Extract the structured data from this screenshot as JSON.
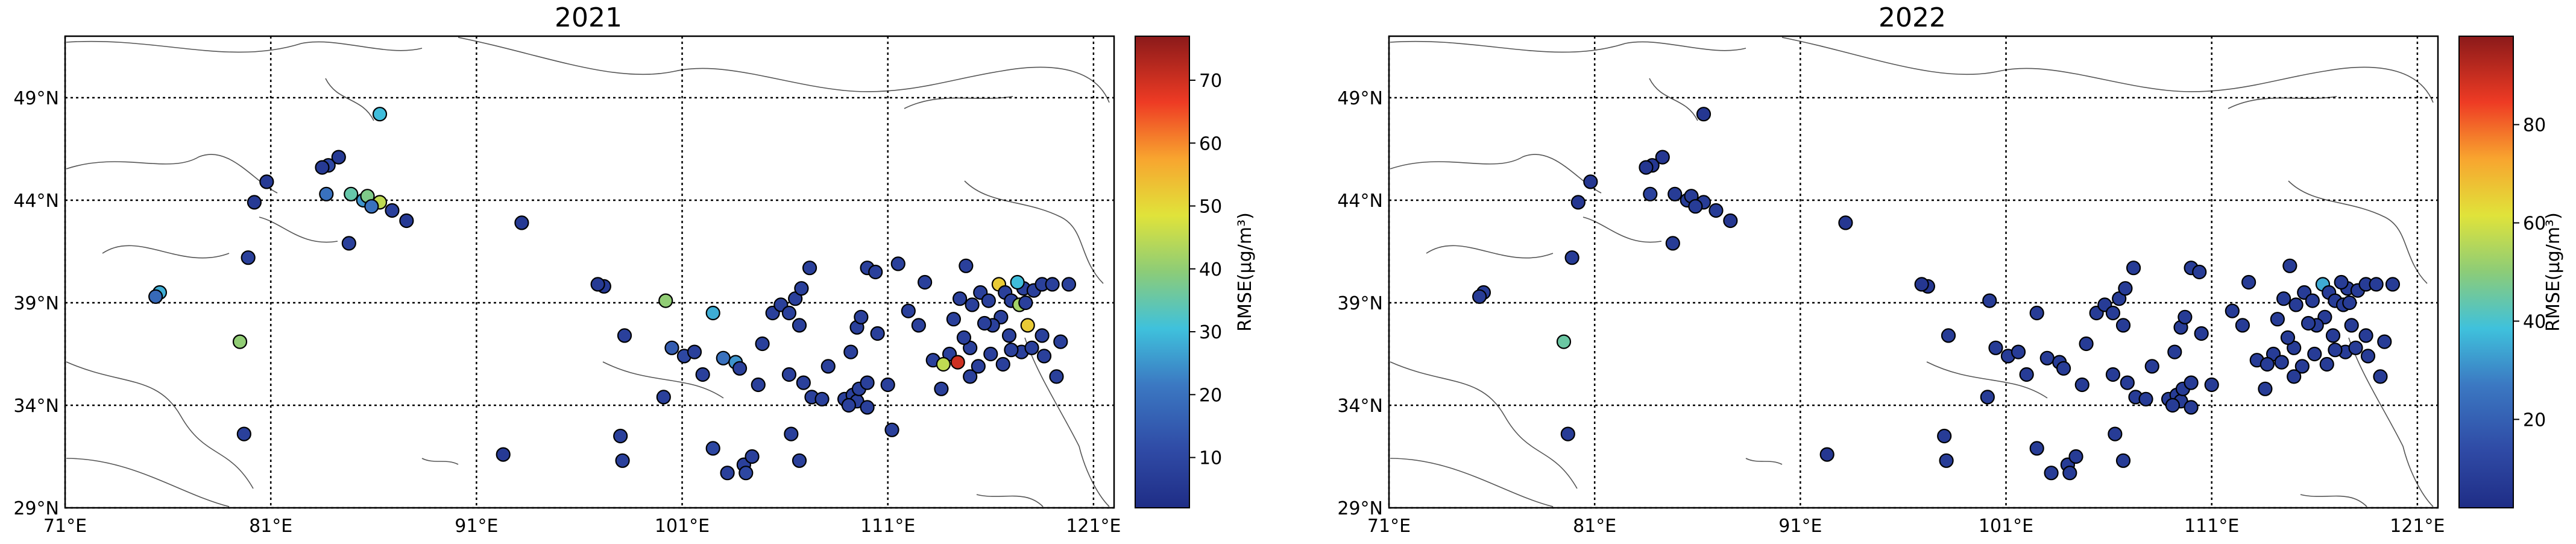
{
  "panels": [
    {
      "title": "2021",
      "colorbar": {
        "label": "RMSE(μg/m³)",
        "min": 2,
        "max": 77,
        "ticks": [
          "10",
          "20",
          "30",
          "40",
          "50",
          "60",
          "70"
        ],
        "tick_values": [
          10,
          20,
          30,
          40,
          50,
          60,
          70
        ]
      },
      "points": [
        [
          75.6,
          39.5,
          28
        ],
        [
          75.4,
          39.3,
          18
        ],
        [
          79.5,
          37.1,
          40
        ],
        [
          79.7,
          32.6,
          8
        ],
        [
          79.9,
          41.2,
          8
        ],
        [
          80.2,
          43.9,
          6
        ],
        [
          80.8,
          44.9,
          6
        ],
        [
          83.8,
          45.7,
          10
        ],
        [
          84.3,
          46.1,
          6
        ],
        [
          83.5,
          45.6,
          6
        ],
        [
          83.7,
          44.3,
          20
        ],
        [
          84.9,
          44.3,
          35
        ],
        [
          85.5,
          44.0,
          25
        ],
        [
          85.7,
          44.2,
          38
        ],
        [
          86.3,
          43.9,
          45
        ],
        [
          86.9,
          43.5,
          8
        ],
        [
          87.6,
          43.0,
          6
        ],
        [
          84.8,
          41.9,
          8
        ],
        [
          86.3,
          48.2,
          30
        ],
        [
          85.9,
          43.7,
          20
        ],
        [
          93.2,
          42.9,
          6
        ],
        [
          92.3,
          31.6,
          6
        ],
        [
          97.2,
          39.8,
          6
        ],
        [
          96.9,
          39.9,
          6
        ],
        [
          98.2,
          37.4,
          8
        ],
        [
          98.0,
          32.5,
          8
        ],
        [
          98.1,
          31.3,
          8
        ],
        [
          100.2,
          39.1,
          40
        ],
        [
          100.5,
          36.8,
          15
        ],
        [
          100.1,
          34.4,
          8
        ],
        [
          101.1,
          36.4,
          10
        ],
        [
          101.6,
          36.6,
          8
        ],
        [
          102.5,
          38.5,
          28
        ],
        [
          102.0,
          35.5,
          8
        ],
        [
          103.0,
          36.3,
          20
        ],
        [
          103.6,
          36.1,
          25
        ],
        [
          103.8,
          35.8,
          8
        ],
        [
          102.5,
          31.9,
          10
        ],
        [
          103.2,
          30.7,
          8
        ],
        [
          104.0,
          31.1,
          8
        ],
        [
          104.4,
          31.5,
          8
        ],
        [
          104.1,
          30.7,
          10
        ],
        [
          104.7,
          35.0,
          8
        ],
        [
          104.9,
          37.0,
          8
        ],
        [
          105.4,
          38.5,
          8
        ],
        [
          105.8,
          38.9,
          8
        ],
        [
          106.2,
          38.5,
          8
        ],
        [
          106.5,
          39.2,
          8
        ],
        [
          106.8,
          39.7,
          8
        ],
        [
          107.2,
          40.7,
          8
        ],
        [
          106.7,
          37.9,
          8
        ],
        [
          106.2,
          35.5,
          8
        ],
        [
          106.9,
          35.1,
          8
        ],
        [
          107.3,
          34.4,
          8
        ],
        [
          107.8,
          34.3,
          8
        ],
        [
          106.3,
          32.6,
          8
        ],
        [
          106.7,
          31.3,
          8
        ],
        [
          108.1,
          35.9,
          8
        ],
        [
          108.9,
          34.3,
          8
        ],
        [
          109.3,
          34.5,
          8
        ],
        [
          109.5,
          34.2,
          8
        ],
        [
          109.1,
          34.0,
          8
        ],
        [
          109.6,
          34.8,
          8
        ],
        [
          110.0,
          35.1,
          8
        ],
        [
          109.2,
          36.6,
          8
        ],
        [
          109.5,
          37.8,
          8
        ],
        [
          109.7,
          38.3,
          8
        ],
        [
          110.0,
          40.7,
          8
        ],
        [
          110.4,
          40.5,
          8
        ],
        [
          110.5,
          37.5,
          8
        ],
        [
          110.0,
          33.9,
          8
        ],
        [
          111.0,
          35.0,
          8
        ],
        [
          111.2,
          32.8,
          8
        ],
        [
          111.5,
          40.9,
          8
        ],
        [
          112.0,
          38.6,
          8
        ],
        [
          112.5,
          37.9,
          8
        ],
        [
          112.8,
          40.0,
          8
        ],
        [
          113.2,
          36.2,
          8
        ],
        [
          113.6,
          34.8,
          8
        ],
        [
          114.0,
          36.5,
          8
        ],
        [
          114.2,
          38.2,
          8
        ],
        [
          114.5,
          39.2,
          8
        ],
        [
          114.8,
          40.8,
          8
        ],
        [
          115.1,
          38.9,
          8
        ],
        [
          115.5,
          39.5,
          8
        ],
        [
          115.9,
          39.1,
          8
        ],
        [
          116.4,
          39.9,
          52
        ],
        [
          116.7,
          39.5,
          8
        ],
        [
          117.0,
          39.1,
          8
        ],
        [
          117.4,
          38.9,
          42
        ],
        [
          117.6,
          39.7,
          8
        ],
        [
          118.1,
          39.6,
          8
        ],
        [
          118.5,
          39.9,
          8
        ],
        [
          119.0,
          39.9,
          8
        ],
        [
          116.5,
          38.3,
          8
        ],
        [
          116.9,
          37.4,
          8
        ],
        [
          117.5,
          36.6,
          8
        ],
        [
          118.0,
          36.8,
          8
        ],
        [
          118.5,
          37.4,
          8
        ],
        [
          117.0,
          36.7,
          8
        ],
        [
          116.0,
          36.5,
          8
        ],
        [
          115.4,
          35.9,
          8
        ],
        [
          114.4,
          36.1,
          70
        ],
        [
          113.7,
          36.0,
          45
        ],
        [
          115.0,
          36.8,
          8
        ],
        [
          119.4,
          37.1,
          8
        ],
        [
          117.8,
          37.9,
          52
        ],
        [
          116.6,
          36.0,
          8
        ],
        [
          118.6,
          36.4,
          8
        ],
        [
          119.8,
          39.9,
          8
        ],
        [
          117.3,
          40.0,
          30
        ],
        [
          117.7,
          39.0,
          8
        ],
        [
          116.1,
          37.9,
          8
        ],
        [
          115.7,
          38.0,
          8
        ],
        [
          114.7,
          37.3,
          8
        ],
        [
          115.0,
          35.4,
          8
        ],
        [
          119.2,
          35.4,
          8
        ]
      ]
    },
    {
      "title": "2022",
      "colorbar": {
        "label": "RMSE(μg/m³)",
        "min": 2,
        "max": 98,
        "ticks": [
          "20",
          "40",
          "60",
          "80"
        ],
        "tick_values": [
          20,
          40,
          60,
          80
        ]
      },
      "points": [
        [
          75.6,
          39.5,
          8
        ],
        [
          75.4,
          39.3,
          8
        ],
        [
          79.5,
          37.1,
          45
        ],
        [
          79.7,
          32.6,
          8
        ],
        [
          79.9,
          41.2,
          8
        ],
        [
          80.2,
          43.9,
          6
        ],
        [
          80.8,
          44.9,
          6
        ],
        [
          83.8,
          45.7,
          6
        ],
        [
          84.3,
          46.1,
          6
        ],
        [
          83.5,
          45.6,
          6
        ],
        [
          83.7,
          44.3,
          10
        ],
        [
          84.9,
          44.3,
          8
        ],
        [
          85.5,
          44.0,
          8
        ],
        [
          85.7,
          44.2,
          8
        ],
        [
          86.3,
          43.9,
          8
        ],
        [
          86.9,
          43.5,
          8
        ],
        [
          87.6,
          43.0,
          6
        ],
        [
          84.8,
          41.9,
          8
        ],
        [
          86.3,
          48.2,
          6
        ],
        [
          85.9,
          43.7,
          8
        ],
        [
          93.2,
          42.9,
          6
        ],
        [
          92.3,
          31.6,
          6
        ],
        [
          97.2,
          39.8,
          6
        ],
        [
          96.9,
          39.9,
          6
        ],
        [
          98.2,
          37.4,
          8
        ],
        [
          98.0,
          32.5,
          8
        ],
        [
          98.1,
          31.3,
          8
        ],
        [
          100.2,
          39.1,
          8
        ],
        [
          100.5,
          36.8,
          8
        ],
        [
          100.1,
          34.4,
          8
        ],
        [
          101.1,
          36.4,
          8
        ],
        [
          101.6,
          36.6,
          8
        ],
        [
          102.5,
          38.5,
          8
        ],
        [
          102.0,
          35.5,
          8
        ],
        [
          103.0,
          36.3,
          8
        ],
        [
          103.6,
          36.1,
          8
        ],
        [
          103.8,
          35.8,
          8
        ],
        [
          102.5,
          31.9,
          8
        ],
        [
          103.2,
          30.7,
          8
        ],
        [
          104.0,
          31.1,
          8
        ],
        [
          104.4,
          31.5,
          8
        ],
        [
          104.1,
          30.7,
          8
        ],
        [
          104.7,
          35.0,
          8
        ],
        [
          104.9,
          37.0,
          8
        ],
        [
          105.4,
          38.5,
          8
        ],
        [
          105.8,
          38.9,
          8
        ],
        [
          106.2,
          38.5,
          8
        ],
        [
          106.5,
          39.2,
          8
        ],
        [
          106.8,
          39.7,
          8
        ],
        [
          107.2,
          40.7,
          8
        ],
        [
          106.7,
          37.9,
          8
        ],
        [
          106.2,
          35.5,
          8
        ],
        [
          106.9,
          35.1,
          8
        ],
        [
          107.3,
          34.4,
          8
        ],
        [
          107.8,
          34.3,
          8
        ],
        [
          106.3,
          32.6,
          8
        ],
        [
          106.7,
          31.3,
          8
        ],
        [
          108.1,
          35.9,
          8
        ],
        [
          108.9,
          34.3,
          8
        ],
        [
          109.3,
          34.5,
          8
        ],
        [
          109.5,
          34.2,
          8
        ],
        [
          109.1,
          34.0,
          8
        ],
        [
          109.6,
          34.8,
          8
        ],
        [
          110.0,
          35.1,
          8
        ],
        [
          109.2,
          36.6,
          8
        ],
        [
          109.5,
          37.8,
          8
        ],
        [
          109.7,
          38.3,
          8
        ],
        [
          110.0,
          40.7,
          8
        ],
        [
          110.4,
          40.5,
          8
        ],
        [
          110.5,
          37.5,
          8
        ],
        [
          110.0,
          33.9,
          8
        ],
        [
          111.0,
          35.0,
          8
        ],
        [
          112.0,
          38.6,
          8
        ],
        [
          112.5,
          37.9,
          8
        ],
        [
          112.8,
          40.0,
          8
        ],
        [
          113.2,
          36.2,
          8
        ],
        [
          113.6,
          34.8,
          8
        ],
        [
          114.0,
          36.5,
          8
        ],
        [
          114.2,
          38.2,
          8
        ],
        [
          114.5,
          39.2,
          8
        ],
        [
          114.8,
          40.8,
          8
        ],
        [
          115.1,
          38.9,
          8
        ],
        [
          115.5,
          39.5,
          8
        ],
        [
          115.9,
          39.1,
          8
        ],
        [
          116.4,
          39.9,
          35
        ],
        [
          116.7,
          39.5,
          8
        ],
        [
          117.0,
          39.1,
          8
        ],
        [
          117.4,
          38.9,
          8
        ],
        [
          117.6,
          39.7,
          8
        ],
        [
          118.1,
          39.6,
          8
        ],
        [
          118.5,
          39.9,
          8
        ],
        [
          119.0,
          39.9,
          8
        ],
        [
          116.5,
          38.3,
          8
        ],
        [
          116.9,
          37.4,
          8
        ],
        [
          117.5,
          36.6,
          8
        ],
        [
          118.0,
          36.8,
          8
        ],
        [
          118.5,
          37.4,
          8
        ],
        [
          117.0,
          36.7,
          8
        ],
        [
          116.0,
          36.5,
          8
        ],
        [
          115.4,
          35.9,
          8
        ],
        [
          114.4,
          36.1,
          8
        ],
        [
          113.7,
          36.0,
          8
        ],
        [
          115.0,
          36.8,
          8
        ],
        [
          119.4,
          37.1,
          8
        ],
        [
          117.8,
          37.9,
          8
        ],
        [
          116.6,
          36.0,
          8
        ],
        [
          118.6,
          36.4,
          8
        ],
        [
          119.8,
          39.9,
          8
        ],
        [
          117.3,
          40.0,
          8
        ],
        [
          117.7,
          39.0,
          8
        ],
        [
          116.1,
          37.9,
          8
        ],
        [
          115.7,
          38.0,
          8
        ],
        [
          114.7,
          37.3,
          8
        ],
        [
          115.0,
          35.4,
          8
        ],
        [
          119.2,
          35.4,
          8
        ]
      ]
    }
  ],
  "axes": {
    "xticks": [
      "71°E",
      "81°E",
      "91°E",
      "101°E",
      "111°E",
      "121°E"
    ],
    "xtick_values": [
      71,
      81,
      91,
      101,
      111,
      121
    ],
    "yticks": [
      "29°N",
      "34°N",
      "39°N",
      "44°N",
      "49°N"
    ],
    "ytick_values": [
      29,
      34,
      39,
      44,
      49
    ],
    "lon_range": [
      71,
      122
    ],
    "lat_range": [
      29,
      52
    ]
  },
  "colors": {
    "marker_edge": "#000000",
    "grid": "#000000",
    "coastline": "#555555"
  }
}
